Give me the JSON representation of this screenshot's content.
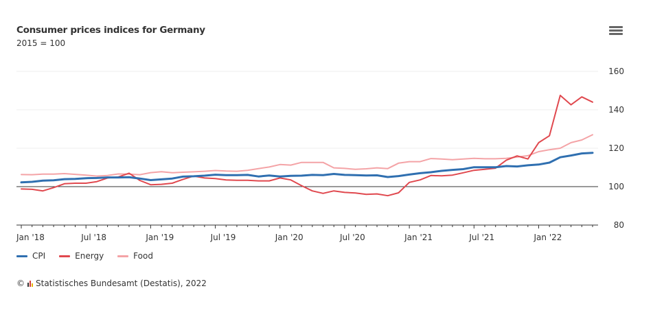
{
  "header": {
    "title": "Consumer prices indices for Germany",
    "subtitle": "2015 = 100",
    "menu_icon": "hamburger-menu-icon"
  },
  "legend": [
    {
      "name": "CPI",
      "color": "#2f6fb0"
    },
    {
      "name": "Energy",
      "color": "#e0484e"
    },
    {
      "name": "Food",
      "color": "#f4a3a6"
    }
  ],
  "credits": {
    "symbol": "©",
    "text": "Statistisches Bundesamt (Destatis), 2022"
  },
  "chart_data": {
    "type": "line",
    "title": "Consumer prices indices for Germany",
    "subtitle": "2015 = 100",
    "xlabel": "",
    "ylabel": "",
    "x_start": "Jan 2018",
    "x_end": "Jun 2022",
    "x_tick_labels": [
      "Jan '18",
      "Jul '18",
      "Jan '19",
      "Jul '19",
      "Jan '20",
      "Jul '20",
      "Jan '21",
      "Jul '21",
      "Jan '22"
    ],
    "y_ticks": [
      80,
      100,
      120,
      140,
      160
    ],
    "ylim": [
      80,
      160
    ],
    "y_axis_side": "right",
    "reference_line": 100,
    "grid": true,
    "legend_position": "bottom-left",
    "series": [
      {
        "name": "CPI",
        "color": "#2f6fb0",
        "values": [
          102.2,
          102.5,
          103.1,
          103.3,
          103.9,
          104.0,
          104.4,
          104.5,
          104.8,
          104.8,
          104.9,
          104.2,
          103.4,
          103.8,
          104.2,
          105.2,
          105.4,
          105.7,
          106.2,
          106.0,
          106.0,
          106.1,
          105.3,
          105.8,
          105.3,
          105.6,
          105.7,
          106.1,
          106.0,
          106.6,
          106.1,
          106.0,
          105.8,
          105.9,
          105.0,
          105.5,
          106.3,
          107.0,
          107.5,
          108.2,
          108.7,
          109.1,
          110.1,
          110.1,
          110.1,
          110.7,
          110.5,
          111.1,
          111.5,
          112.5,
          115.3,
          116.2,
          117.3,
          117.6
        ]
      },
      {
        "name": "Energy",
        "color": "#e0484e",
        "values": [
          98.8,
          98.6,
          97.8,
          99.5,
          101.5,
          101.8,
          101.8,
          102.6,
          104.5,
          105.0,
          107.0,
          103.2,
          101.0,
          101.2,
          101.8,
          103.8,
          105.5,
          104.5,
          104.2,
          103.5,
          103.3,
          103.3,
          103.0,
          103.0,
          104.5,
          103.5,
          100.5,
          97.8,
          96.5,
          97.8,
          97.0,
          96.7,
          96.0,
          96.2,
          95.3,
          96.8,
          102.2,
          103.5,
          105.8,
          105.6,
          106.0,
          107.2,
          108.5,
          109.0,
          109.6,
          113.8,
          116.0,
          114.4,
          122.9,
          126.5,
          147.5,
          142.6,
          146.7,
          144.0
        ]
      },
      {
        "name": "Food",
        "color": "#f4a3a6",
        "values": [
          106.3,
          106.2,
          106.5,
          106.5,
          106.8,
          106.4,
          106.0,
          105.5,
          105.8,
          106.6,
          106.5,
          106.2,
          107.3,
          107.8,
          107.2,
          107.5,
          107.7,
          108.0,
          108.4,
          108.1,
          108.0,
          108.5,
          109.4,
          110.2,
          111.5,
          111.2,
          112.6,
          112.6,
          112.6,
          109.8,
          109.5,
          109.0,
          109.3,
          109.8,
          109.4,
          112.2,
          113.0,
          113.0,
          114.6,
          114.4,
          114.0,
          114.4,
          114.7,
          114.5,
          114.5,
          114.7,
          115.4,
          116.1,
          118.2,
          119.2,
          120.0,
          122.9,
          124.3,
          127.0
        ]
      }
    ]
  }
}
